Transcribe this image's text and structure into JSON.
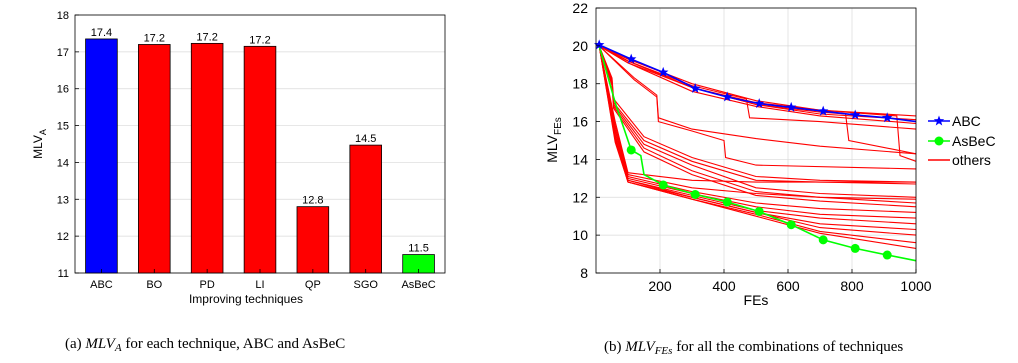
{
  "chart_data": [
    {
      "type": "bar",
      "categories": [
        "ABC",
        "BO",
        "PD",
        "LI",
        "QP",
        "SGO",
        "AsBeC"
      ],
      "values": [
        17.35,
        17.2,
        17.23,
        17.15,
        12.8,
        14.47,
        11.5
      ],
      "value_labels": [
        "17.4",
        "17.2",
        "17.2",
        "17.2",
        "12.8",
        "14.5",
        "11.5"
      ],
      "bar_colors": [
        "#0000ff",
        "#ff0000",
        "#ff0000",
        "#ff0000",
        "#ff0000",
        "#ff0000",
        "#00ff00"
      ],
      "xlabel": "Improving techniques",
      "ylabel": {
        "main": "MLV",
        "sub": "A"
      },
      "ylim": [
        11,
        18
      ],
      "yticks": [
        11,
        12,
        13,
        14,
        15,
        16,
        17,
        18
      ],
      "grid": true,
      "caption": {
        "prefix": "(a) ",
        "main": "MLV",
        "sub": "A",
        "rest": " for each technique, ABC and AsBeC"
      }
    },
    {
      "type": "line",
      "xlabel": "FEs",
      "ylabel": {
        "main": "MLV",
        "sub": "FEs"
      },
      "xlim": [
        0,
        1000
      ],
      "ylim": [
        8,
        22
      ],
      "xticks": [
        200,
        400,
        600,
        800,
        1000
      ],
      "yticks": [
        8,
        10,
        12,
        14,
        16,
        18,
        20,
        22
      ],
      "grid": true,
      "legend_position": "right",
      "series": [
        {
          "name": "ABC",
          "color": "#0000ff",
          "marker": "star",
          "x": [
            10,
            110,
            210,
            310,
            410,
            510,
            610,
            710,
            810,
            910,
            1000
          ],
          "y": [
            20.05,
            19.3,
            18.6,
            17.75,
            17.3,
            16.95,
            16.75,
            16.55,
            16.35,
            16.2,
            16.0
          ],
          "marker_x": [
            10,
            110,
            210,
            310,
            410,
            510,
            610,
            710,
            810,
            910
          ]
        },
        {
          "name": "AsBeC",
          "color": "#00ff00",
          "marker": "circle",
          "x": [
            10,
            60,
            110,
            140,
            150,
            210,
            310,
            410,
            510,
            610,
            710,
            810,
            910,
            1000
          ],
          "y": [
            20.0,
            17.0,
            14.5,
            14.2,
            13.2,
            12.65,
            12.15,
            11.75,
            11.25,
            10.55,
            9.75,
            9.3,
            8.95,
            8.65
          ],
          "marker_x": [
            110,
            210,
            310,
            410,
            510,
            610,
            710,
            810,
            910
          ]
        },
        {
          "name": "others",
          "color": "#ff0000",
          "lines": [
            {
              "x": [
                10,
                100,
                300,
                500,
                700,
                1000
              ],
              "y": [
                20.0,
                19.3,
                18.0,
                17.1,
                16.6,
                16.3
              ]
            },
            {
              "x": [
                10,
                100,
                300,
                500,
                700,
                1000
              ],
              "y": [
                20.0,
                19.2,
                17.8,
                16.9,
                16.4,
                16.1
              ]
            },
            {
              "x": [
                10,
                100,
                300,
                500,
                700,
                1000
              ],
              "y": [
                20.0,
                19.1,
                17.6,
                16.8,
                16.3,
                15.9
              ]
            },
            {
              "x": [
                10,
                100,
                300,
                470,
                480,
                700,
                1000
              ],
              "y": [
                20.0,
                19.2,
                17.9,
                17.2,
                16.2,
                16.0,
                15.6
              ]
            },
            {
              "x": [
                10,
                100,
                300,
                500,
                700,
                780,
                790,
                1000
              ],
              "y": [
                20.0,
                19.1,
                17.8,
                16.9,
                16.5,
                16.4,
                15.0,
                14.3
              ]
            },
            {
              "x": [
                10,
                100,
                300,
                500,
                700,
                940,
                950,
                1000
              ],
              "y": [
                20.0,
                19.2,
                17.8,
                17.0,
                16.6,
                16.3,
                14.2,
                13.9
              ]
            },
            {
              "x": [
                10,
                120,
                190,
                195,
                300,
                500,
                700,
                1000
              ],
              "y": [
                20.0,
                18.3,
                17.4,
                16.2,
                15.6,
                15.1,
                14.7,
                14.3
              ]
            },
            {
              "x": [
                10,
                120,
                190,
                195,
                300,
                400,
                405,
                500,
                1000
              ],
              "y": [
                20.0,
                18.2,
                17.3,
                16.0,
                15.5,
                15.0,
                14.1,
                13.7,
                13.5
              ]
            },
            {
              "x": [
                10,
                50,
                55,
                150,
                300,
                500,
                700,
                1000
              ],
              "y": [
                20.0,
                18.3,
                17.2,
                15.2,
                14.1,
                13.1,
                12.9,
                12.8
              ]
            },
            {
              "x": [
                10,
                50,
                55,
                150,
                300,
                500,
                700,
                1000
              ],
              "y": [
                20.0,
                18.2,
                17.0,
                15.0,
                13.9,
                12.9,
                12.8,
                12.7
              ]
            },
            {
              "x": [
                10,
                50,
                55,
                150,
                300,
                500,
                700,
                1000
              ],
              "y": [
                20.0,
                18.1,
                16.9,
                14.8,
                13.7,
                12.5,
                12.2,
                12.0
              ]
            },
            {
              "x": [
                10,
                50,
                55,
                150,
                300,
                500,
                700,
                1000
              ],
              "y": [
                20.0,
                18.0,
                16.8,
                14.6,
                13.4,
                12.3,
                12.0,
                11.7
              ]
            },
            {
              "x": [
                10,
                50,
                55,
                150,
                300,
                500,
                700,
                1000
              ],
              "y": [
                20.0,
                17.9,
                16.7,
                14.4,
                13.2,
                12.1,
                11.8,
                11.5
              ]
            },
            {
              "x": [
                10,
                60,
                100,
                300,
                500,
                700,
                1000
              ],
              "y": [
                20.0,
                16.0,
                13.3,
                12.9,
                12.8,
                12.8,
                12.8
              ]
            },
            {
              "x": [
                10,
                60,
                100,
                300,
                500,
                700,
                1000
              ],
              "y": [
                20.0,
                15.8,
                13.2,
                12.5,
                12.2,
                12.0,
                11.9
              ]
            },
            {
              "x": [
                10,
                60,
                100,
                300,
                500,
                700,
                1000
              ],
              "y": [
                20.0,
                15.6,
                13.1,
                12.3,
                11.7,
                11.4,
                11.2
              ]
            },
            {
              "x": [
                10,
                60,
                100,
                300,
                500,
                700,
                1000
              ],
              "y": [
                20.0,
                15.5,
                13.0,
                12.2,
                11.5,
                11.1,
                10.9
              ]
            },
            {
              "x": [
                10,
                60,
                100,
                300,
                500,
                700,
                1000
              ],
              "y": [
                20.0,
                15.3,
                12.9,
                12.1,
                11.3,
                10.9,
                10.6
              ]
            },
            {
              "x": [
                10,
                60,
                100,
                300,
                500,
                700,
                1000
              ],
              "y": [
                20.0,
                15.2,
                12.9,
                12.0,
                11.2,
                10.6,
                10.3
              ]
            },
            {
              "x": [
                10,
                60,
                100,
                300,
                500,
                700,
                1000
              ],
              "y": [
                20.0,
                15.1,
                12.8,
                12.0,
                11.2,
                10.4,
                10.0
              ]
            },
            {
              "x": [
                10,
                60,
                100,
                300,
                500,
                700,
                1000
              ],
              "y": [
                20.0,
                15.0,
                12.8,
                11.9,
                11.1,
                10.2,
                9.6
              ]
            },
            {
              "x": [
                10,
                60,
                100,
                300,
                500,
                700,
                1000
              ],
              "y": [
                20.0,
                14.9,
                12.8,
                11.9,
                11.0,
                10.1,
                9.3
              ]
            }
          ]
        }
      ],
      "caption": {
        "prefix": "(b) ",
        "main": "MLV",
        "sub": "FEs",
        "rest": " for all the combinations of techniques"
      }
    }
  ]
}
